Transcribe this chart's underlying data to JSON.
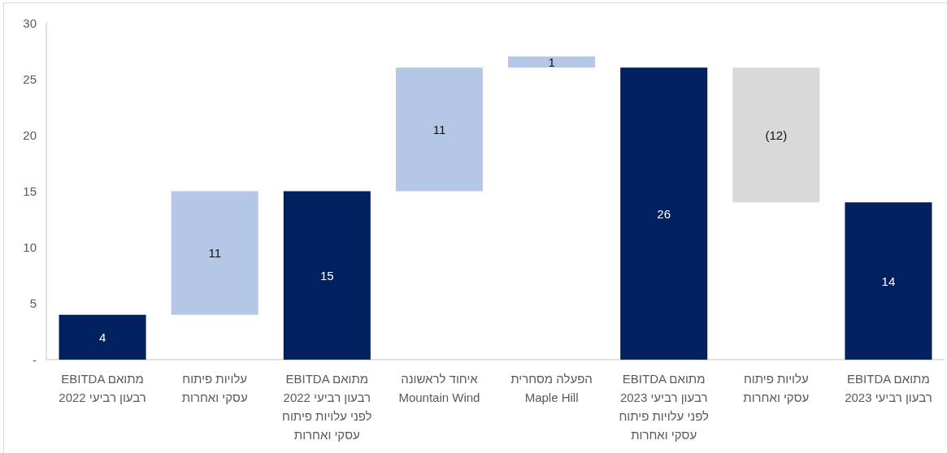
{
  "chart_data": {
    "type": "bar",
    "categories": [
      "EBITDA מתואם\nרבעון רביעי 2022",
      "עלויות פיתוח\nעסקי ואחרות",
      "EBITDA מתואם\nרבעון רביעי 2022\nלפני עלויות פיתוח\nעסקי ואחרות",
      "איחוד לראשונה\nMountain Wind",
      "הפעלה מסחרית\nMaple Hill",
      "EBITDA מתואם\nרבעון רביעי 2023\nלפני עלויות פיתוח\nעסקי ואחרות",
      "עלויות פיתוח\nעסקי ואחרות",
      "EBITDA מתואם\nרבעון רביעי 2023"
    ],
    "values": [
      4,
      11,
      15,
      11,
      1,
      26,
      -12,
      14
    ],
    "base": [
      0,
      4,
      0,
      15,
      26,
      0,
      26,
      0
    ],
    "colors": [
      "#002060",
      "#b4c7e7",
      "#002060",
      "#b4c7e7",
      "#b4c7e7",
      "#002060",
      "#d9d9d9",
      "#002060"
    ],
    "value_labels": [
      "4",
      "11",
      "15",
      "11",
      "1",
      "26",
      "(12)",
      "14"
    ],
    "ylim": [
      0,
      30
    ],
    "yticks": [
      {
        "value": 0,
        "label": "-"
      },
      5,
      10,
      15,
      20,
      25,
      30
    ]
  }
}
